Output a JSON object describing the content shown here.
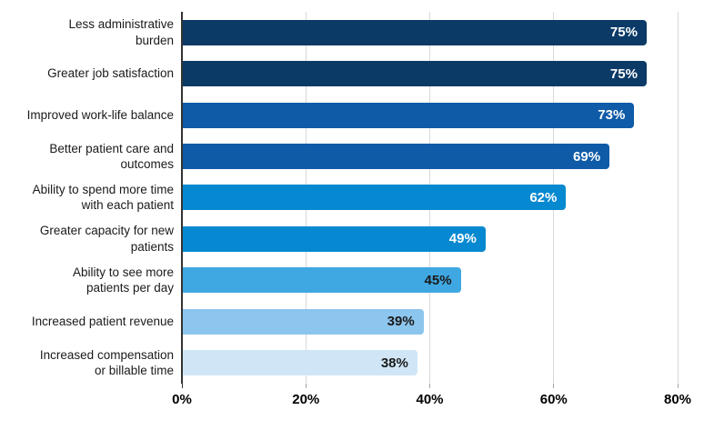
{
  "chart_data": {
    "type": "bar",
    "orientation": "horizontal",
    "title": "",
    "xlabel": "",
    "ylabel": "",
    "xlim": [
      0,
      80
    ],
    "grid": "vertical",
    "legend": "none",
    "categories": [
      "Less administrative burden",
      "Greater job satisfaction",
      "Improved work-life balance",
      "Better patient care and outcomes",
      "Ability to spend more time with each patient",
      "Greater capacity for new patients",
      "Ability to see more patients per day",
      "Increased patient revenue",
      "Increased compensation or billable time"
    ],
    "category_lines": [
      [
        "Less administrative",
        "burden"
      ],
      [
        "Greater job satisfaction"
      ],
      [
        "Improved work-life balance"
      ],
      [
        "Better patient care and",
        "outcomes"
      ],
      [
        "Ability to spend more time",
        "with each patient"
      ],
      [
        "Greater capacity for new",
        "patients"
      ],
      [
        "Ability to see more",
        "patients per day"
      ],
      [
        "Increased patient revenue"
      ],
      [
        "Increased compensation",
        "or billable time"
      ]
    ],
    "values": [
      75,
      75,
      73,
      69,
      62,
      49,
      45,
      39,
      38
    ],
    "value_labels": [
      "75%",
      "75%",
      "73%",
      "69%",
      "62%",
      "49%",
      "45%",
      "39%",
      "38%"
    ],
    "bar_colors": [
      "#0c3a67",
      "#0c3a67",
      "#0f5ba8",
      "#0f5ba8",
      "#0689d0",
      "#0689d0",
      "#3fa8e3",
      "#8cc5ed",
      "#d0e6f6"
    ],
    "value_label_colors": [
      "#ffffff",
      "#ffffff",
      "#ffffff",
      "#ffffff",
      "#ffffff",
      "#ffffff",
      "#1a1a1a",
      "#1a1a1a",
      "#1a1a1a"
    ],
    "x_ticks": [
      {
        "value": 0,
        "label": "0%"
      },
      {
        "value": 20,
        "label": "20%"
      },
      {
        "value": 40,
        "label": "40%"
      },
      {
        "value": 60,
        "label": "60%"
      },
      {
        "value": 80,
        "label": "80%"
      }
    ],
    "styles": {
      "background": "#ffffff",
      "gridline_color": "#d9d9d9",
      "axis_line_color": "#333333",
      "tick_mark_color": "#a6a6a6",
      "category_label_color": "#1a1a1a",
      "x_tick_label_color": "#000000"
    }
  }
}
